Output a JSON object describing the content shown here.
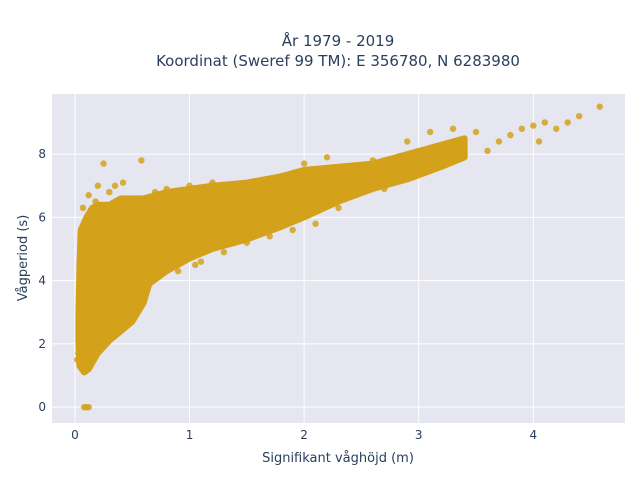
{
  "chart_data": {
    "type": "scatter",
    "title_lines": [
      "År 1979 - 2019",
      "Koordinat (Sweref 99 TM): E 356780, N 6283980"
    ],
    "xlabel": "Signifikant våghöjd (m)",
    "ylabel": "Vågperiod (s)",
    "xlim": [
      -0.2,
      4.8
    ],
    "ylim": [
      -0.5,
      9.9
    ],
    "xticks": [
      0,
      1,
      2,
      3,
      4
    ],
    "yticks": [
      0,
      2,
      4,
      6,
      8
    ],
    "grid": true,
    "marker_color": "#D4A21A",
    "plot_bg": "#E5E6EF",
    "series_points": [
      [
        0.02,
        1.5
      ],
      [
        0.03,
        1.7
      ],
      [
        0.03,
        2.5
      ],
      [
        0.04,
        3.0
      ],
      [
        0.05,
        3.8
      ],
      [
        0.05,
        1.3
      ],
      [
        0.06,
        4.2
      ],
      [
        0.06,
        5.5
      ],
      [
        0.07,
        6.3
      ],
      [
        0.07,
        1.2
      ],
      [
        0.08,
        5.0
      ],
      [
        0.08,
        0.0
      ],
      [
        0.09,
        2.8
      ],
      [
        0.1,
        4.8
      ],
      [
        0.1,
        0.0
      ],
      [
        0.11,
        1.2
      ],
      [
        0.12,
        6.7
      ],
      [
        0.12,
        0.0
      ],
      [
        0.14,
        3.5
      ],
      [
        0.15,
        5.8
      ],
      [
        0.16,
        1.5
      ],
      [
        0.18,
        6.5
      ],
      [
        0.2,
        7.0
      ],
      [
        0.22,
        2.0
      ],
      [
        0.24,
        6.1
      ],
      [
        0.25,
        7.7
      ],
      [
        0.28,
        2.4
      ],
      [
        0.3,
        6.8
      ],
      [
        0.32,
        5.2
      ],
      [
        0.35,
        7.0
      ],
      [
        0.38,
        3.5
      ],
      [
        0.4,
        6.2
      ],
      [
        0.42,
        7.1
      ],
      [
        0.45,
        2.8
      ],
      [
        0.5,
        6.5
      ],
      [
        0.55,
        3.2
      ],
      [
        0.58,
        7.8
      ],
      [
        0.6,
        3.8
      ],
      [
        0.7,
        6.8
      ],
      [
        0.75,
        4.2
      ],
      [
        0.8,
        6.9
      ],
      [
        0.9,
        4.3
      ],
      [
        1.0,
        7.0
      ],
      [
        1.05,
        4.5
      ],
      [
        1.1,
        4.6
      ],
      [
        1.2,
        7.1
      ],
      [
        1.3,
        4.9
      ],
      [
        1.4,
        7.0
      ],
      [
        1.5,
        5.2
      ],
      [
        1.6,
        7.1
      ],
      [
        1.7,
        5.4
      ],
      [
        1.8,
        7.3
      ],
      [
        1.9,
        5.6
      ],
      [
        2.0,
        7.7
      ],
      [
        2.1,
        5.8
      ],
      [
        2.2,
        7.9
      ],
      [
        2.3,
        6.3
      ],
      [
        2.4,
        7.6
      ],
      [
        2.5,
        7.0
      ],
      [
        2.6,
        7.8
      ],
      [
        2.7,
        6.9
      ],
      [
        2.8,
        7.5
      ],
      [
        2.9,
        8.4
      ],
      [
        3.0,
        7.7
      ],
      [
        3.1,
        8.7
      ],
      [
        3.2,
        7.9
      ],
      [
        3.3,
        8.8
      ],
      [
        3.4,
        8.0
      ],
      [
        3.5,
        8.7
      ],
      [
        3.6,
        8.1
      ],
      [
        3.7,
        8.4
      ],
      [
        3.8,
        8.6
      ],
      [
        3.9,
        8.8
      ],
      [
        4.0,
        8.9
      ],
      [
        4.05,
        8.4
      ],
      [
        4.1,
        9.0
      ],
      [
        4.2,
        8.8
      ],
      [
        4.3,
        9.0
      ],
      [
        4.4,
        9.2
      ],
      [
        4.58,
        9.5
      ]
    ]
  }
}
